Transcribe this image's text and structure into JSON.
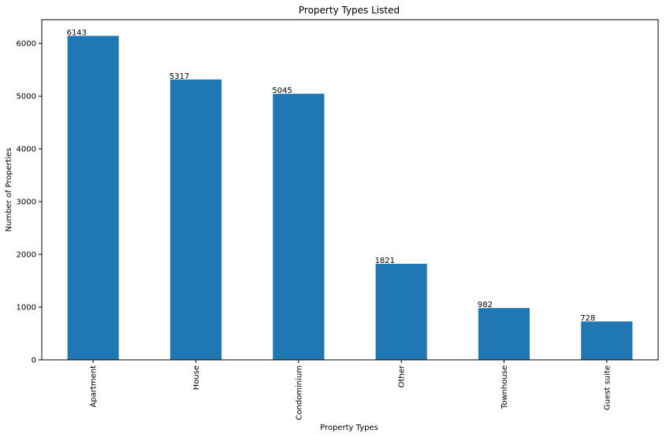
{
  "chart_data": {
    "type": "bar",
    "title": "Property Types Listed",
    "xlabel": "Property Types",
    "ylabel": "Number of Properties",
    "categories": [
      "Apartment",
      "House",
      "Condominium",
      "Other",
      "Townhouse",
      "Guest suite"
    ],
    "values": [
      6143,
      5317,
      5045,
      1821,
      982,
      728
    ],
    "data_labels": [
      "6143",
      "5317",
      "5045",
      "1821",
      "982",
      "728"
    ],
    "ylim": [
      0,
      6450
    ],
    "yticks": [
      0,
      1000,
      2000,
      3000,
      4000,
      5000,
      6000
    ],
    "ytick_labels": [
      "0",
      "1000",
      "2000",
      "3000",
      "4000",
      "5000",
      "6000"
    ],
    "xtick_rotation": "vertical",
    "grid": false,
    "legend": "none",
    "bar_color": "#1f77b4"
  }
}
